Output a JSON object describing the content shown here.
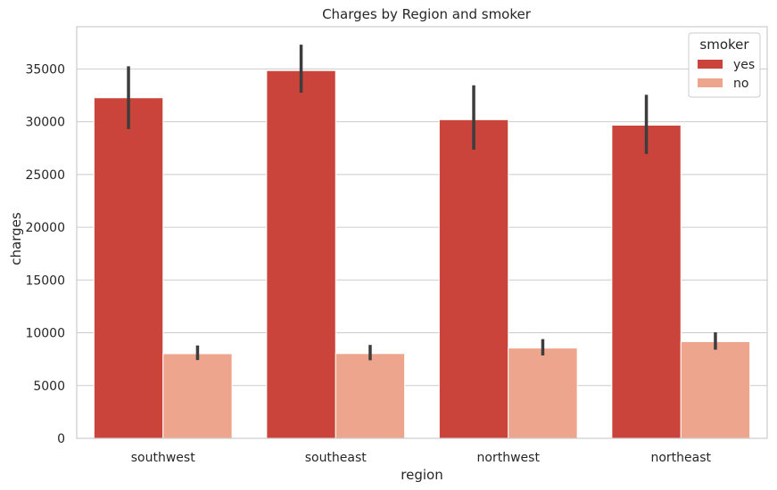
{
  "chart_data": {
    "type": "bar",
    "title": "Charges by Region and smoker",
    "xlabel": "region",
    "ylabel": "charges",
    "categories": [
      "southwest",
      "southeast",
      "northwest",
      "northeast"
    ],
    "ylim": [
      0,
      39000
    ],
    "yticks": [
      0,
      5000,
      10000,
      15000,
      20000,
      25000,
      30000,
      35000
    ],
    "ytick_labels": [
      "0",
      "5000",
      "10000",
      "15000",
      "20000",
      "25000",
      "30000",
      "35000"
    ],
    "grid": "horizontal",
    "legend": {
      "title": "smoker",
      "placement": "top-right"
    },
    "series": [
      {
        "name": "yes",
        "color": "#cb443c",
        "values": [
          32270,
          34845,
          30192,
          29674
        ],
        "ci_low": [
          29300,
          32750,
          27350,
          26950
        ],
        "ci_high": [
          35250,
          37300,
          33450,
          32550
        ]
      },
      {
        "name": "no",
        "color": "#eda58d",
        "values": [
          8020,
          8033,
          8556,
          9166
        ],
        "ci_low": [
          7420,
          7400,
          7850,
          8400
        ],
        "ci_high": [
          8800,
          8850,
          9400,
          10050
        ]
      }
    ]
  }
}
